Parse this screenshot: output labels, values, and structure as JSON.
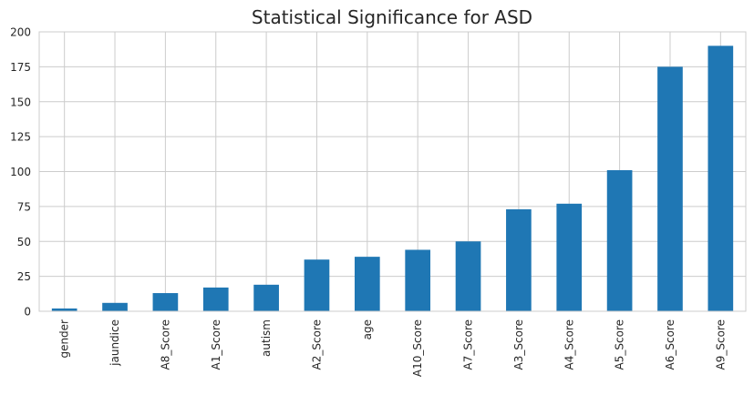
{
  "chart_data": {
    "type": "bar",
    "title": "Statistical Significance for ASD",
    "xlabel": "",
    "ylabel": "",
    "categories": [
      "gender",
      "jaundice",
      "A8_Score",
      "A1_Score",
      "autism",
      "A2_Score",
      "age",
      "A10_Score",
      "A7_Score",
      "A3_Score",
      "A4_Score",
      "A5_Score",
      "A6_Score",
      "A9_Score"
    ],
    "values": [
      2,
      6,
      13,
      17,
      19,
      37,
      39,
      44,
      50,
      73,
      77,
      101,
      175,
      190
    ],
    "ylim": [
      0,
      200
    ],
    "yticks": [
      "0",
      "25",
      "50",
      "75",
      "100",
      "125",
      "150",
      "175",
      "200"
    ],
    "grid": true,
    "bar_color": "#1f77b4",
    "grid_color": "#cccccc"
  }
}
